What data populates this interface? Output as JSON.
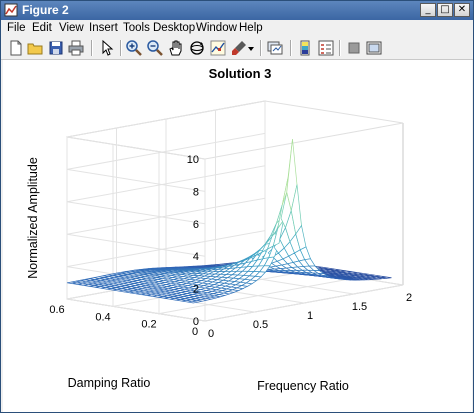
{
  "window": {
    "title": "Figure 2"
  },
  "menu": [
    {
      "label": "File"
    },
    {
      "label": "Edit"
    },
    {
      "label": "View"
    },
    {
      "label": "Insert"
    },
    {
      "label": "Tools"
    },
    {
      "label": "Desktop"
    },
    {
      "label": "Window"
    },
    {
      "label": "Help"
    }
  ],
  "toolbar": {
    "icons": [
      "new-figure-icon",
      "open-file-icon",
      "save-icon",
      "print-icon",
      "select-arrow-icon",
      "zoom-in-icon",
      "zoom-out-icon",
      "pan-hand-icon",
      "rotate-3d-icon",
      "data-cursor-icon",
      "brush-icon",
      "brush-dropdown-icon",
      "link-plot-icon",
      "insert-colorbar-icon",
      "insert-legend-icon",
      "hide-plot-tools-icon",
      "show-plot-tools-icon"
    ]
  },
  "chart_data": {
    "type": "surface-mesh",
    "title": "Solution 3",
    "xlabel": "Frequency Ratio",
    "ylabel": "Damping Ratio",
    "zlabel": "Normalized Amplitude",
    "xlim": [
      0,
      2
    ],
    "ylim": [
      0,
      0.6
    ],
    "zlim": [
      0,
      10
    ],
    "x_ticks": [
      "0",
      "0.5",
      "1",
      "1.5",
      "2"
    ],
    "y_ticks": [
      "0",
      "0.2",
      "0.4",
      "0.6"
    ],
    "z_ticks": [
      "0",
      "2",
      "4",
      "6",
      "8",
      "10"
    ],
    "function": "1/sqrt((1-r^2)^2+(2*zeta*r)^2)",
    "peak": {
      "x": 1.0,
      "y": 0.05,
      "z": 10
    },
    "colormap": [
      "#1f2a7a",
      "#2f63b6",
      "#3fa7c7",
      "#7fd6b0",
      "#f3f27a"
    ],
    "grid": "on"
  }
}
